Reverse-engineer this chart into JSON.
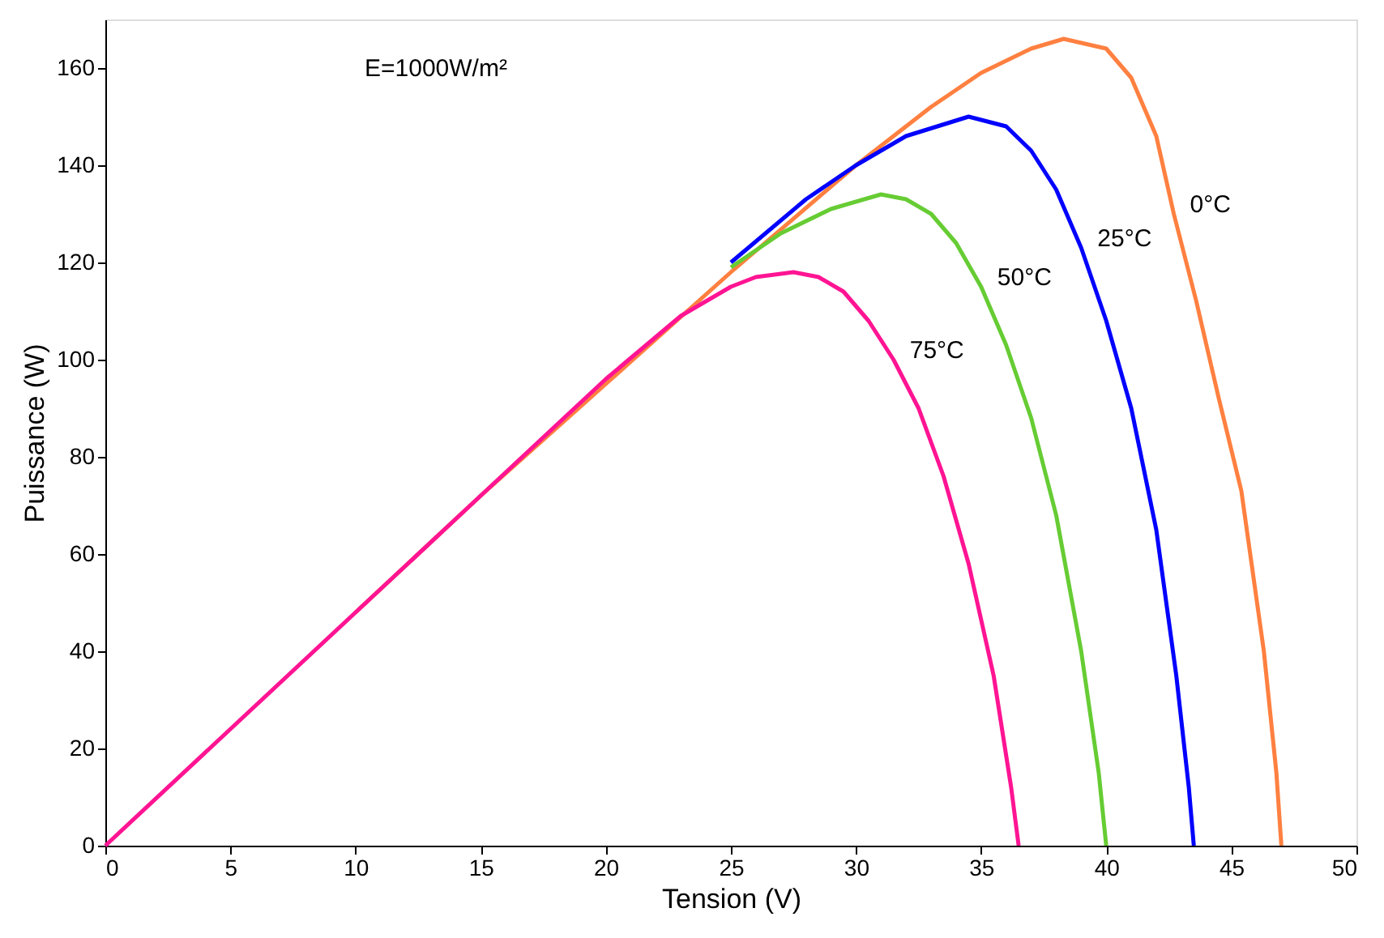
{
  "chart_data": {
    "type": "line",
    "xlabel": "Tension (V)",
    "ylabel": "Puissance (W)",
    "xlim": [
      0,
      50
    ],
    "xticks": [
      0,
      5,
      10,
      15,
      20,
      25,
      30,
      35,
      40,
      45,
      50
    ],
    "ylim": [
      0,
      170
    ],
    "yticks": [
      0,
      20,
      40,
      60,
      80,
      100,
      120,
      140,
      160
    ],
    "grid": false,
    "marker": "none",
    "line_style": "solid",
    "annotations": [
      "E=1000W/m²"
    ],
    "series": [
      {
        "name": "0°C",
        "color": "#ff8040",
        "x": [
          10,
          15,
          20,
          25,
          30,
          33,
          35,
          37,
          38.3,
          40,
          41,
          42,
          42.7,
          43.6,
          44.5,
          45.4,
          46.3,
          46.8,
          47
        ],
        "values": [
          48,
          72,
          95,
          118,
          140,
          152,
          159,
          164,
          166,
          164,
          158,
          146,
          130,
          112,
          92,
          73,
          40,
          15,
          0
        ]
      },
      {
        "name": "25°C",
        "color": "#0000ff",
        "x": [
          25,
          28,
          30,
          32,
          34.5,
          36,
          37,
          38,
          39,
          40,
          41,
          42,
          42.8,
          43.3,
          43.5
        ],
        "values": [
          120,
          133,
          140,
          146,
          150,
          148,
          143,
          135,
          123,
          108,
          90,
          65,
          35,
          12,
          0
        ]
      },
      {
        "name": "50°C",
        "color": "#66cc33",
        "x": [
          25,
          27,
          29,
          31,
          32,
          33,
          34,
          35,
          36,
          37,
          38,
          39,
          39.7,
          40
        ],
        "values": [
          119,
          126,
          131,
          134,
          133,
          130,
          124,
          115,
          103,
          88,
          68,
          40,
          15,
          0
        ]
      },
      {
        "name": "75°C",
        "color": "#ff1493",
        "x": [
          0,
          5,
          10,
          15,
          20,
          23,
          25,
          26,
          27.5,
          28.5,
          29.5,
          30.5,
          31.5,
          32.5,
          33.5,
          34.5,
          35.5,
          36.2,
          36.5
        ],
        "values": [
          0,
          24,
          48,
          72,
          96,
          109,
          115,
          117,
          118,
          117,
          114,
          108,
          100,
          90,
          76,
          58,
          35,
          12,
          0
        ]
      }
    ]
  }
}
